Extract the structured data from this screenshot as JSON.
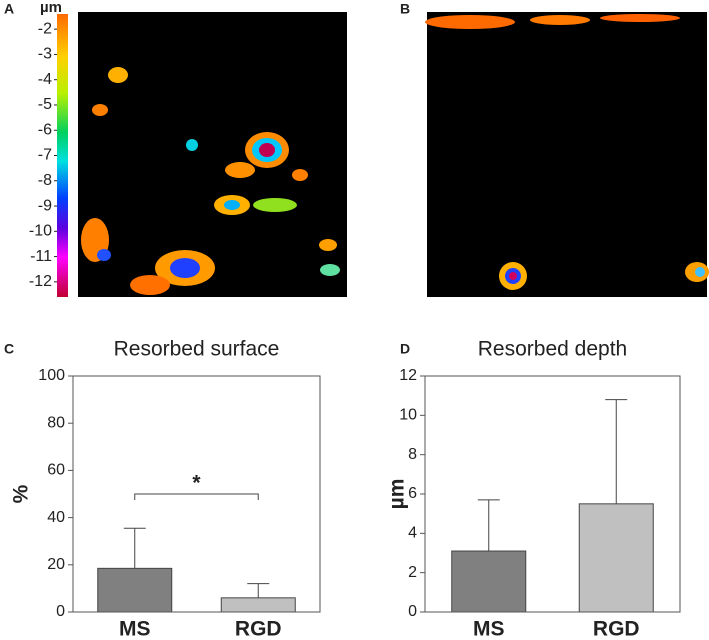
{
  "panels": {
    "a": "A",
    "b": "B",
    "c": "C",
    "d": "D"
  },
  "colorbar": {
    "label": "µm",
    "lim": [
      -1.4,
      -12.6
    ],
    "ticks": [
      -2,
      -3,
      -4,
      -5,
      -6,
      -7,
      -8,
      -9,
      -10,
      -11,
      -12
    ]
  },
  "chart_data": [
    {
      "type": "bar",
      "title": "Resorbed surface",
      "ylabel": "%",
      "categories": [
        "MS",
        "RGD"
      ],
      "values": [
        18.5,
        6
      ],
      "errors": [
        17,
        6
      ],
      "colors": [
        "#808080",
        "#c0c0c0"
      ],
      "ylim": [
        0,
        100
      ],
      "yticks": [
        0,
        20,
        40,
        60,
        80,
        100
      ],
      "annotation": "*"
    },
    {
      "type": "bar",
      "title": "Resorbed depth",
      "ylabel": "µm",
      "categories": [
        "MS",
        "RGD"
      ],
      "values": [
        3.1,
        5.5
      ],
      "errors": [
        2.6,
        5.3
      ],
      "colors": [
        "#808080",
        "#c0c0c0"
      ],
      "ylim": [
        0,
        12
      ],
      "yticks": [
        0,
        2,
        4,
        6,
        8,
        10,
        12
      ]
    }
  ]
}
